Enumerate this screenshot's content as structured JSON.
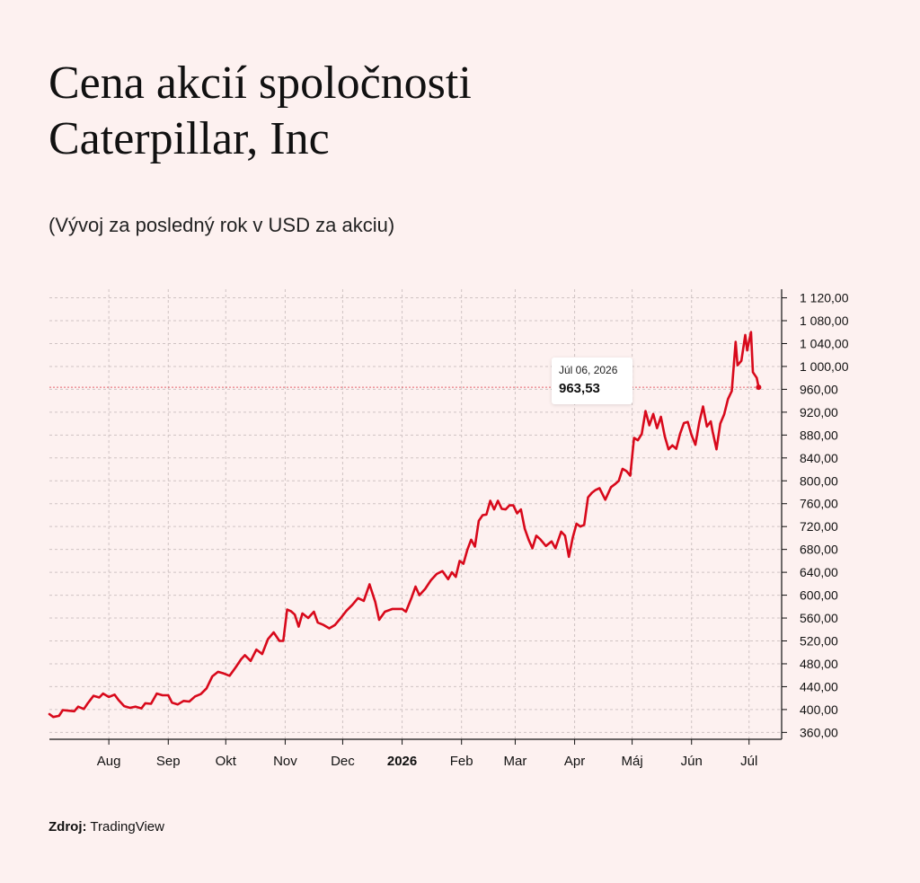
{
  "title_line1": "Cena akcií spoločnosti",
  "title_line2": "Caterpillar, Inc",
  "subtitle": "(Vývoj za posledný rok v USD za akciu)",
  "source": {
    "label": "Zdroj:",
    "value": "TradingView"
  },
  "tooltip": {
    "date": "Júl 06, 2026",
    "value": "963,53"
  },
  "colors": {
    "line": "#d8091b",
    "background": "#fdf1f0",
    "grid": "#cfc3c3"
  },
  "chart_data": {
    "type": "line",
    "title": "Cena akcií spoločnosti Caterpillar, Inc",
    "subtitle": "(Vývoj za posledný rok v USD za akciu)",
    "xlabel": "",
    "ylabel": "",
    "x_ticks": [
      {
        "label": "Aug",
        "bold": false,
        "date": "2025-08-01"
      },
      {
        "label": "Sep",
        "bold": false,
        "date": "2025-09-01"
      },
      {
        "label": "Okt",
        "bold": false,
        "date": "2025-10-01"
      },
      {
        "label": "Nov",
        "bold": false,
        "date": "2025-11-01"
      },
      {
        "label": "Dec",
        "bold": false,
        "date": "2025-12-01"
      },
      {
        "label": "2026",
        "bold": true,
        "date": "2026-01-01"
      },
      {
        "label": "Feb",
        "bold": false,
        "date": "2026-02-01"
      },
      {
        "label": "Mar",
        "bold": false,
        "date": "2026-03-01"
      },
      {
        "label": "Apr",
        "bold": false,
        "date": "2026-04-01"
      },
      {
        "label": "Máj",
        "bold": false,
        "date": "2026-05-01"
      },
      {
        "label": "Jún",
        "bold": false,
        "date": "2026-06-01"
      },
      {
        "label": "Júl",
        "bold": false,
        "date": "2026-07-01"
      }
    ],
    "y_ticks": [
      {
        "value": 360,
        "label": "360,00"
      },
      {
        "value": 400,
        "label": "400,00"
      },
      {
        "value": 440,
        "label": "440,00"
      },
      {
        "value": 480,
        "label": "480,00"
      },
      {
        "value": 520,
        "label": "520,00"
      },
      {
        "value": 560,
        "label": "560,00"
      },
      {
        "value": 600,
        "label": "600,00"
      },
      {
        "value": 640,
        "label": "640,00"
      },
      {
        "value": 680,
        "label": "680,00"
      },
      {
        "value": 720,
        "label": "720,00"
      },
      {
        "value": 760,
        "label": "760,00"
      },
      {
        "value": 800,
        "label": "800,00"
      },
      {
        "value": 840,
        "label": "840,00"
      },
      {
        "value": 880,
        "label": "880,00"
      },
      {
        "value": 920,
        "label": "920,00"
      },
      {
        "value": 960,
        "label": "960,00"
      },
      {
        "value": 1000,
        "label": "1 000,00"
      },
      {
        "value": 1040,
        "label": "1 040,00"
      },
      {
        "value": 1080,
        "label": "1 080,00"
      },
      {
        "value": 1120,
        "label": "1 120,00"
      }
    ],
    "ylim": [
      348,
      1135
    ],
    "xlim": [
      "2025-07-01",
      "2026-07-18"
    ],
    "grid": true,
    "y_axis_position": "right",
    "last_point": {
      "x": "2026-07-06",
      "y": 963.53
    },
    "series": [
      {
        "values": [
          [
            "2025-07-01",
            392
          ],
          [
            "2025-07-03",
            387
          ],
          [
            "2025-07-06",
            389
          ],
          [
            "2025-07-08",
            399
          ],
          [
            "2025-07-11",
            398
          ],
          [
            "2025-07-14",
            397
          ],
          [
            "2025-07-16",
            405
          ],
          [
            "2025-07-19",
            401
          ],
          [
            "2025-07-21",
            411
          ],
          [
            "2025-07-24",
            424
          ],
          [
            "2025-07-27",
            421
          ],
          [
            "2025-07-29",
            428
          ],
          [
            "2025-08-01",
            422
          ],
          [
            "2025-08-04",
            426
          ],
          [
            "2025-08-06",
            417
          ],
          [
            "2025-08-09",
            406
          ],
          [
            "2025-08-12",
            403
          ],
          [
            "2025-08-15",
            405
          ],
          [
            "2025-08-18",
            402
          ],
          [
            "2025-08-20",
            411
          ],
          [
            "2025-08-23",
            410
          ],
          [
            "2025-08-26",
            428
          ],
          [
            "2025-08-29",
            425
          ],
          [
            "2025-09-01",
            425
          ],
          [
            "2025-09-03",
            412
          ],
          [
            "2025-09-06",
            409
          ],
          [
            "2025-09-09",
            415
          ],
          [
            "2025-09-12",
            414
          ],
          [
            "2025-09-15",
            423
          ],
          [
            "2025-09-18",
            427
          ],
          [
            "2025-09-21",
            437
          ],
          [
            "2025-09-24",
            458
          ],
          [
            "2025-09-27",
            466
          ],
          [
            "2025-09-30",
            463
          ],
          [
            "2025-10-03",
            459
          ],
          [
            "2025-10-06",
            473
          ],
          [
            "2025-10-09",
            488
          ],
          [
            "2025-10-11",
            495
          ],
          [
            "2025-10-14",
            485
          ],
          [
            "2025-10-17",
            505
          ],
          [
            "2025-10-20",
            497
          ],
          [
            "2025-10-23",
            523
          ],
          [
            "2025-10-26",
            535
          ],
          [
            "2025-10-29",
            520
          ],
          [
            "2025-10-31",
            520
          ],
          [
            "2025-11-02",
            575
          ],
          [
            "2025-11-04",
            572
          ],
          [
            "2025-11-06",
            566
          ],
          [
            "2025-11-08",
            545
          ],
          [
            "2025-11-10",
            568
          ],
          [
            "2025-11-13",
            560
          ],
          [
            "2025-11-16",
            571
          ],
          [
            "2025-11-18",
            552
          ],
          [
            "2025-11-21",
            548
          ],
          [
            "2025-11-24",
            542
          ],
          [
            "2025-11-27",
            548
          ],
          [
            "2025-11-30",
            560
          ],
          [
            "2025-12-03",
            573
          ],
          [
            "2025-12-06",
            583
          ],
          [
            "2025-12-09",
            595
          ],
          [
            "2025-12-12",
            590
          ],
          [
            "2025-12-15",
            619
          ],
          [
            "2025-12-18",
            588
          ],
          [
            "2025-12-20",
            557
          ],
          [
            "2025-12-23",
            571
          ],
          [
            "2025-12-27",
            576
          ],
          [
            "2026-01-01",
            576
          ],
          [
            "2026-01-03",
            571
          ],
          [
            "2026-01-06",
            596
          ],
          [
            "2026-01-08",
            615
          ],
          [
            "2026-01-10",
            600
          ],
          [
            "2026-01-13",
            611
          ],
          [
            "2026-01-16",
            626
          ],
          [
            "2026-01-19",
            637
          ],
          [
            "2026-01-22",
            642
          ],
          [
            "2026-01-25",
            628
          ],
          [
            "2026-01-27",
            640
          ],
          [
            "2026-01-29",
            632
          ],
          [
            "2026-01-31",
            660
          ],
          [
            "2026-02-02",
            655
          ],
          [
            "2026-02-04",
            679
          ],
          [
            "2026-02-06",
            697
          ],
          [
            "2026-02-08",
            685
          ],
          [
            "2026-02-10",
            730
          ],
          [
            "2026-02-12",
            740
          ],
          [
            "2026-02-14",
            741
          ],
          [
            "2026-02-16",
            765
          ],
          [
            "2026-02-18",
            750
          ],
          [
            "2026-02-20",
            765
          ],
          [
            "2026-02-22",
            751
          ],
          [
            "2026-02-24",
            750
          ],
          [
            "2026-02-26",
            757
          ],
          [
            "2026-02-28",
            757
          ],
          [
            "2026-03-02",
            743
          ],
          [
            "2026-03-04",
            750
          ],
          [
            "2026-03-06",
            716
          ],
          [
            "2026-03-08",
            697
          ],
          [
            "2026-03-10",
            682
          ],
          [
            "2026-03-12",
            704
          ],
          [
            "2026-03-14",
            698
          ],
          [
            "2026-03-17",
            686
          ],
          [
            "2026-03-20",
            694
          ],
          [
            "2026-03-22",
            682
          ],
          [
            "2026-03-25",
            711
          ],
          [
            "2026-03-27",
            704
          ],
          [
            "2026-03-29",
            667
          ],
          [
            "2026-03-31",
            700
          ],
          [
            "2026-04-02",
            725
          ],
          [
            "2026-04-04",
            720
          ],
          [
            "2026-04-06",
            723
          ],
          [
            "2026-04-08",
            771
          ],
          [
            "2026-04-10",
            779
          ],
          [
            "2026-04-12",
            784
          ],
          [
            "2026-04-14",
            787
          ],
          [
            "2026-04-17",
            767
          ],
          [
            "2026-04-20",
            789
          ],
          [
            "2026-04-22",
            794
          ],
          [
            "2026-04-24",
            800
          ],
          [
            "2026-04-26",
            821
          ],
          [
            "2026-04-28",
            817
          ],
          [
            "2026-04-30",
            809
          ],
          [
            "2026-05-02",
            875
          ],
          [
            "2026-05-04",
            871
          ],
          [
            "2026-05-06",
            882
          ],
          [
            "2026-05-08",
            922
          ],
          [
            "2026-05-10",
            897
          ],
          [
            "2026-05-12",
            917
          ],
          [
            "2026-05-14",
            892
          ],
          [
            "2026-05-16",
            912
          ],
          [
            "2026-05-18",
            878
          ],
          [
            "2026-05-20",
            855
          ],
          [
            "2026-05-22",
            862
          ],
          [
            "2026-05-24",
            856
          ],
          [
            "2026-05-26",
            882
          ],
          [
            "2026-05-28",
            901
          ],
          [
            "2026-05-30",
            903
          ],
          [
            "2026-06-01",
            880
          ],
          [
            "2026-06-03",
            863
          ],
          [
            "2026-06-05",
            902
          ],
          [
            "2026-06-07",
            930
          ],
          [
            "2026-06-09",
            895
          ],
          [
            "2026-06-11",
            904
          ],
          [
            "2026-06-12",
            886
          ],
          [
            "2026-06-14",
            855
          ],
          [
            "2026-06-16",
            900
          ],
          [
            "2026-06-18",
            916
          ],
          [
            "2026-06-20",
            943
          ],
          [
            "2026-06-22",
            957
          ],
          [
            "2026-06-24",
            1043
          ],
          [
            "2026-06-25",
            1002
          ],
          [
            "2026-06-27",
            1010
          ],
          [
            "2026-06-29",
            1055
          ],
          [
            "2026-06-30",
            1028
          ],
          [
            "2026-07-02",
            1060
          ],
          [
            "2026-07-03",
            990
          ],
          [
            "2026-07-05",
            980
          ]
        ]
      }
    ]
  }
}
